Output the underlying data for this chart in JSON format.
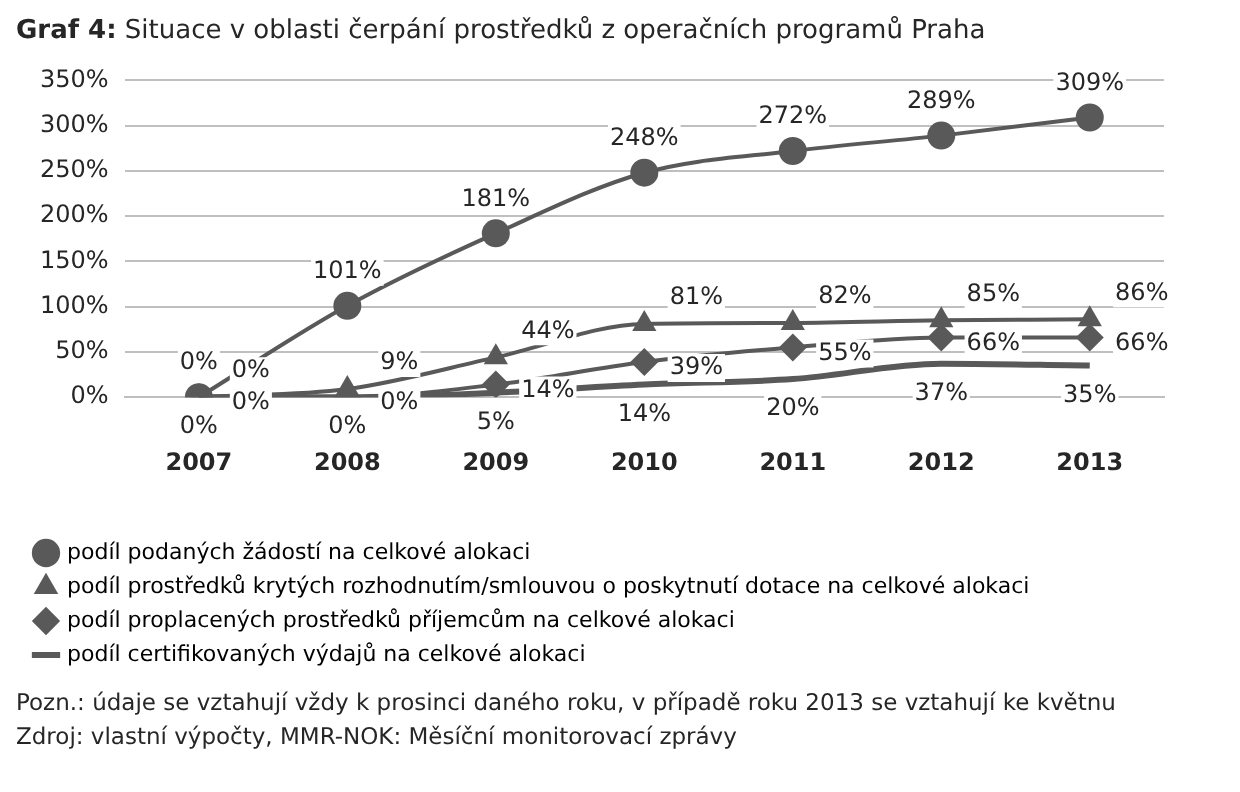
{
  "chart_data": {
    "type": "line",
    "title": "Graf 4: Situace v oblasti čerpání prostředků z operačních programů Praha",
    "categories": [
      "2007",
      "2008",
      "2009",
      "2010",
      "2011",
      "2012",
      "2013"
    ],
    "series": [
      {
        "name": "podíl podaných žádostí na celkové alokaci",
        "color": "#595959",
        "marker": "circle",
        "values": [
          0,
          101,
          181,
          248,
          272,
          289,
          309
        ],
        "value_labels": [
          "0%",
          "101%",
          "181%",
          "248%",
          "272%",
          "289%",
          "309%"
        ]
      },
      {
        "name": "podíl prostředků krytých rozhodnutím/smlouvou o poskytnutí dotace na celkové alokaci",
        "color": "#595959",
        "marker": "triangle",
        "values": [
          0,
          9,
          44,
          81,
          82,
          85,
          86
        ],
        "value_labels": [
          "0%",
          "9%",
          "44%",
          "81%",
          "82%",
          "85%",
          "86%"
        ]
      },
      {
        "name": "podíl proplacených prostředků příjemcům na celkové alokaci",
        "color": "#595959",
        "marker": "diamond",
        "values": [
          0,
          0,
          14,
          39,
          55,
          66,
          66
        ],
        "value_labels": [
          "0%",
          "0%",
          "14%",
          "39%",
          "55%",
          "66%",
          "66%"
        ]
      },
      {
        "name": "podíl certifikovaných výdajů na celkové alokaci",
        "color": "#595959",
        "marker": "none",
        "values": [
          0,
          0,
          5,
          14,
          20,
          37,
          35
        ],
        "value_labels": [
          "0%",
          "0%",
          "5%",
          "14%",
          "20%",
          "37%",
          "35%"
        ]
      }
    ],
    "ylim": [
      0,
      350
    ],
    "yticks": [
      {
        "value": 0,
        "label": "0%"
      },
      {
        "value": 50,
        "label": "50%"
      },
      {
        "value": 100,
        "label": "100%"
      },
      {
        "value": 150,
        "label": "150%"
      },
      {
        "value": 200,
        "label": "200%"
      },
      {
        "value": 250,
        "label": "250%"
      },
      {
        "value": 300,
        "label": "300%"
      },
      {
        "value": 350,
        "label": "350%"
      }
    ],
    "grid": "y",
    "legend": "bottom",
    "annotations": [
      "Pozn.: údaje se vztahují vždy k prosinci daného roku, v případě roku 2013 se vztahují ke květnu",
      "Zdroj: vlastní výpočty, MMR-NOK: Měsíční monitorovací zprávy"
    ]
  }
}
